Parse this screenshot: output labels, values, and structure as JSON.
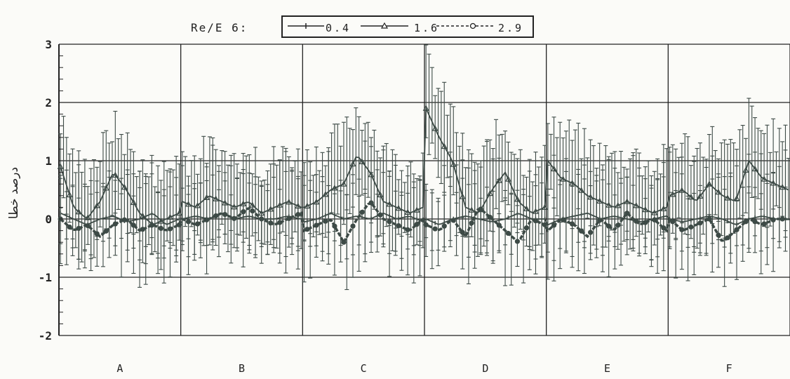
{
  "chart_data": {
    "type": "line",
    "legend_title": "Re/E 6:",
    "legend_placement": "top-center",
    "ylabel": "درصد خطا",
    "xlabel": "",
    "ylim": [
      -2,
      3
    ],
    "yticks": [
      -2,
      -1,
      0,
      1,
      2,
      3
    ],
    "ytick_labels": [
      "-2",
      "-1",
      "0",
      "1",
      "2",
      "3"
    ],
    "categories": [
      "A",
      "B",
      "C",
      "D",
      "E",
      "F"
    ],
    "points_per_category": 40,
    "grid": true,
    "colors": {
      "series": "#3d4a46",
      "grid": "#222222"
    },
    "series": [
      {
        "name": "0.4",
        "marker": "tick",
        "values_by_category": {
          "A": [
            0.1,
            0.0,
            -0.1,
            0.0,
            0.05,
            -0.05,
            0.0,
            0.1,
            -0.1,
            0.0
          ],
          "B": [
            0.0,
            0.05,
            0.0,
            0.1,
            0.0,
            0.05,
            0.0,
            0.0,
            0.05,
            0.0
          ],
          "C": [
            -0.05,
            0.0,
            0.1,
            0.0,
            0.05,
            0.0,
            0.1,
            0.0,
            0.05,
            -0.05
          ],
          "D": [
            0.0,
            -0.1,
            0.0,
            0.05,
            0.0,
            -0.05,
            0.0,
            0.1,
            0.0,
            0.0
          ],
          "E": [
            -0.1,
            0.0,
            0.05,
            0.1,
            0.0,
            0.05,
            0.0,
            -0.05,
            0.0,
            0.05
          ],
          "F": [
            0.0,
            -0.05,
            0.0,
            0.05,
            0.0,
            -0.1,
            0.0,
            0.05,
            0.0,
            0.0
          ]
        },
        "error_range": [
          -0.5,
          0.6
        ]
      },
      {
        "name": "1.6",
        "marker": "triangle",
        "values_by_category": {
          "A": [
            0.9,
            0.2,
            0.0,
            0.3,
            0.8,
            0.5,
            0.1,
            -0.1,
            0.0,
            0.1
          ],
          "B": [
            0.3,
            0.2,
            0.4,
            0.3,
            0.2,
            0.3,
            0.1,
            0.2,
            0.3,
            0.2
          ],
          "C": [
            0.2,
            0.3,
            0.5,
            0.6,
            1.1,
            0.8,
            0.3,
            0.2,
            0.1,
            0.2
          ],
          "D": [
            1.9,
            1.4,
            1.0,
            0.2,
            0.1,
            0.5,
            0.8,
            0.3,
            0.1,
            0.2
          ],
          "E": [
            1.0,
            0.7,
            0.6,
            0.4,
            0.3,
            0.2,
            0.3,
            0.2,
            0.1,
            0.2
          ],
          "F": [
            0.4,
            0.5,
            0.3,
            0.6,
            0.4,
            0.3,
            1.0,
            0.7,
            0.6,
            0.5
          ]
        },
        "error_range": [
          -0.6,
          0.8
        ]
      },
      {
        "name": "2.9",
        "marker": "circle",
        "values_by_category": {
          "A": [
            0.0,
            -0.2,
            -0.1,
            -0.3,
            -0.1,
            0.0,
            -0.2,
            -0.1,
            -0.2,
            -0.1
          ],
          "B": [
            0.0,
            -0.1,
            0.0,
            0.1,
            0.0,
            0.2,
            0.0,
            -0.1,
            0.0,
            0.1
          ],
          "C": [
            -0.2,
            -0.1,
            0.0,
            -0.4,
            0.0,
            0.3,
            0.0,
            -0.1,
            -0.2,
            0.0
          ],
          "D": [
            -0.1,
            -0.2,
            0.0,
            -0.3,
            0.2,
            0.0,
            -0.2,
            -0.4,
            0.0,
            -0.1
          ],
          "E": [
            -0.2,
            0.0,
            -0.1,
            -0.3,
            0.0,
            -0.2,
            0.1,
            -0.1,
            0.0,
            -0.2
          ],
          "F": [
            0.0,
            -0.2,
            -0.1,
            0.0,
            -0.4,
            -0.2,
            0.0,
            -0.1,
            0.0,
            0.0
          ]
        },
        "error_range": [
          -0.7,
          0.9
        ]
      }
    ]
  }
}
